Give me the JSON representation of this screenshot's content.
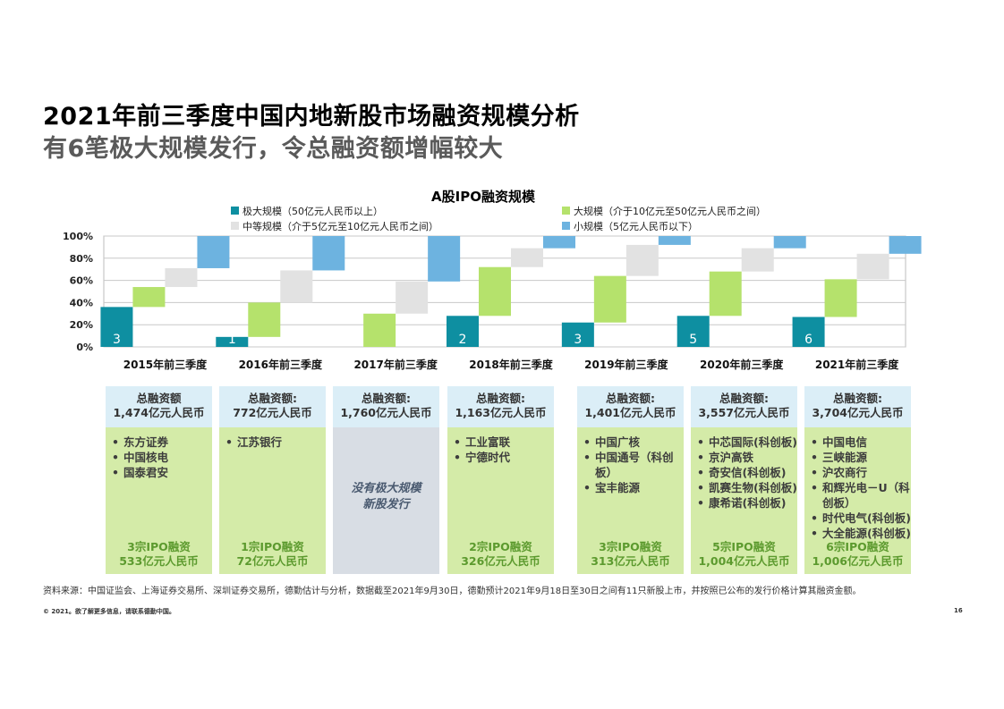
{
  "header": {
    "title": "2021年前三季度中国内地新股市场融资规模分析",
    "subtitle": "有6笔极大规模发行，令总融资额增幅较大"
  },
  "chart_data": {
    "type": "bar",
    "subtype": "stacked-waterfall",
    "title": "A股IPO融资规模",
    "categories": [
      "2015年前三季度",
      "2016年前三季度",
      "2017年前三季度",
      "2018年前三季度",
      "2019年前三季度",
      "2020年前三季度",
      "2021年前三季度"
    ],
    "ylim": [
      0,
      100
    ],
    "yticks": [
      "0%",
      "20%",
      "40%",
      "60%",
      "80%",
      "100%"
    ],
    "series": [
      {
        "name": "极大规模（50亿元人民币以上）",
        "key": "xl",
        "color": "#0e8fa1",
        "values": [
          36,
          9,
          0,
          28,
          22,
          28,
          27
        ]
      },
      {
        "name": "大规模（介于10亿元至50亿元人民币之间）",
        "key": "l",
        "color": "#b5e26c",
        "values": [
          18,
          31,
          30,
          44,
          42,
          40,
          34
        ]
      },
      {
        "name": "中等规模（介于5亿元至10亿元人民币之间）",
        "key": "m",
        "color": "#e2e2e2",
        "values": [
          17,
          29,
          29,
          17,
          28,
          21,
          23
        ]
      },
      {
        "name": "小规模（5亿元人民币以下）",
        "key": "s",
        "color": "#6db3e0",
        "values": [
          29,
          31,
          41,
          11,
          8,
          11,
          16
        ]
      }
    ],
    "bar_labels": [
      "3",
      "1",
      "",
      "2",
      "3",
      "5",
      "6"
    ],
    "legend_position": "top"
  },
  "cards": [
    {
      "total_label": "总融资额",
      "total_value": "1,474亿元人民币",
      "items": [
        "东方证券",
        "中国核电",
        "国泰君安"
      ],
      "count": "3宗IPO融资",
      "amount": "533亿元人民币"
    },
    {
      "total_label": "总融资额:",
      "total_value": "772亿元人民币",
      "items": [
        "江苏银行"
      ],
      "count": "1宗IPO融资",
      "amount": "72亿元人民币"
    },
    {
      "total_label": "总融资额:",
      "total_value": "1,760亿元人民币",
      "none_text_1": "没有极大规模",
      "none_text_2": "新股发行"
    },
    {
      "total_label": "总融资额:",
      "total_value": "1,163亿元人民币",
      "items": [
        "工业富联",
        "宁德时代"
      ],
      "count": "2宗IPO融资",
      "amount": "326亿元人民币"
    },
    {
      "total_label": "总融资额:",
      "total_value": "1,401亿元人民币",
      "items": [
        "中国广核",
        "中国通号（科创板）",
        "宝丰能源"
      ],
      "count": "3宗IPO融资",
      "amount": "313亿元人民币"
    },
    {
      "total_label": "总融资额:",
      "total_value": "3,557亿元人民币",
      "items": [
        "中芯国际(科创板)",
        "京沪高铁",
        "奇安信(科创板)",
        "凯赛生物(科创板)",
        "康希诺(科创板)"
      ],
      "count": "5宗IPO融资",
      "amount": "1,004亿元人民币"
    },
    {
      "total_label": "总融资额:",
      "total_value": "3,704亿元人民币",
      "items": [
        "中国电信",
        "三峡能源",
        "沪农商行",
        "和辉光电－U（科创板）",
        "时代电气(科创板)",
        "大全能源(科创板)"
      ],
      "count": "6宗IPO融资",
      "amount": "1,006亿元人民币"
    }
  ],
  "footer": {
    "source": "资料来源：中国证监会、上海证券交易所、深圳证券交易所，德勤估计与分析，数据截至2021年9月30日，德勤预计2021年9月18日至30日之间有11只新股上市，并按照已公布的发行价格计算其融资金额。",
    "copyright": "© 2021。欲了解更多信息，请联系德勤中国。",
    "page": "16"
  }
}
